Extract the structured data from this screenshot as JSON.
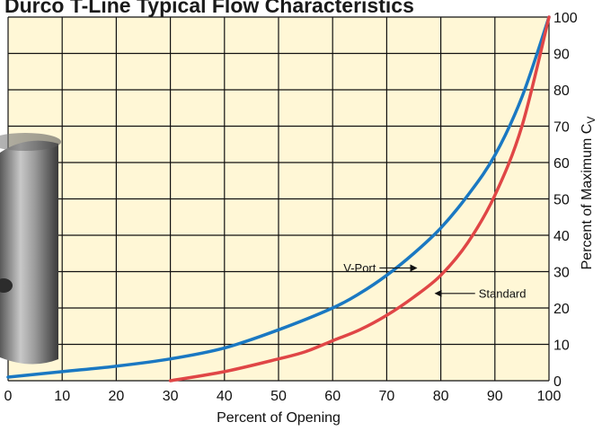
{
  "chart_data": {
    "type": "line",
    "title": "Durco T-Line Typical Flow Characteristics",
    "xlabel": "Percent of Opening",
    "ylabel": "Percent of Maximum C",
    "ylabel_subscript": "V",
    "xlim": [
      0,
      100
    ],
    "ylim": [
      0,
      100
    ],
    "x_ticks": [
      0,
      10,
      20,
      30,
      40,
      50,
      60,
      70,
      80,
      90,
      100
    ],
    "y_ticks": [
      0,
      10,
      20,
      30,
      40,
      50,
      60,
      70,
      80,
      90,
      100
    ],
    "grid": true,
    "y_axis_side": "right",
    "background_color": "#fff7d6",
    "series": [
      {
        "name": "V-Port",
        "color": "#1a78c2",
        "x": [
          0,
          10,
          20,
          30,
          40,
          50,
          60,
          65,
          70,
          75,
          80,
          85,
          90,
          95,
          100
        ],
        "y": [
          1,
          2.5,
          4,
          6,
          9,
          14,
          20,
          24,
          29,
          35,
          42,
          51,
          62,
          78,
          100
        ]
      },
      {
        "name": "Standard",
        "color": "#e04646",
        "x": [
          30,
          40,
          50,
          55,
          60,
          65,
          70,
          75,
          80,
          85,
          90,
          95,
          100
        ],
        "y": [
          0,
          2.5,
          6,
          8,
          11,
          14,
          18,
          23,
          29,
          38,
          51,
          70,
          100
        ]
      }
    ],
    "annotations": [
      {
        "text": "V-Port",
        "x": 68,
        "y": 31,
        "arrow_to": [
          75.5,
          31
        ]
      },
      {
        "text": "Standard",
        "x": 87,
        "y": 24,
        "arrow_to": [
          79,
          24
        ]
      }
    ]
  }
}
